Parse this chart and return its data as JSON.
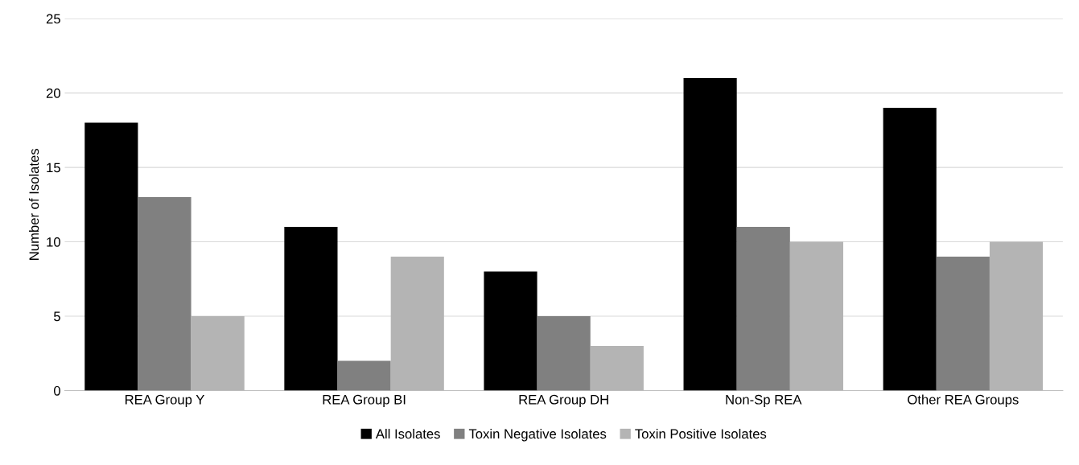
{
  "chart_data": {
    "type": "bar",
    "ylabel": "Number of Isolates",
    "categories": [
      "REA Group Y",
      "REA Group BI",
      "REA Group DH",
      "Non-Sp REA",
      "Other REA Groups"
    ],
    "series": [
      {
        "name": "All Isolates",
        "color": "#000000",
        "values": [
          18,
          11,
          8,
          21,
          19
        ]
      },
      {
        "name": "Toxin Negative Isolates",
        "color": "#808080",
        "values": [
          13,
          2,
          5,
          11,
          9
        ]
      },
      {
        "name": "Toxin Positive Isolates",
        "color": "#b4b4b4",
        "values": [
          5,
          9,
          3,
          10,
          10
        ]
      }
    ],
    "ylim": [
      0,
      25
    ],
    "yticks": [
      0,
      5,
      10,
      15,
      20,
      25
    ],
    "grid": "y",
    "legend": "bottom"
  }
}
